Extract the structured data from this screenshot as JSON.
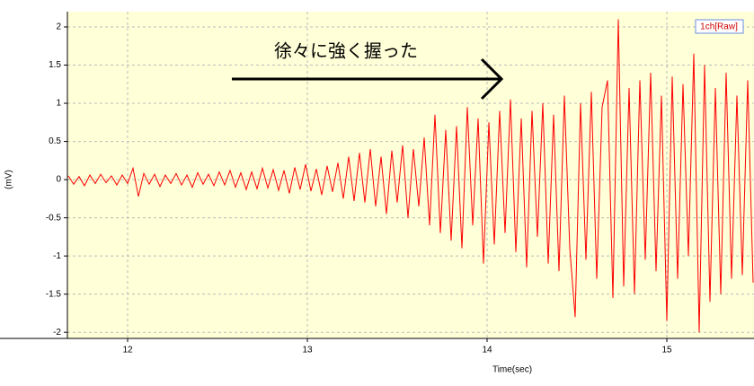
{
  "chart_data": {
    "type": "line",
    "annotation": "徐々に強く握った",
    "legend": "1ch[Raw]",
    "xlabel": "Time(sec)",
    "ylabel": "(mV)",
    "xlim": [
      11.665,
      15.485
    ],
    "ylim": [
      -2.08,
      2.2
    ],
    "xticks": [
      12,
      13,
      14,
      15
    ],
    "yticks": [
      2,
      1.5,
      1,
      0.5,
      0,
      -0.5,
      -1,
      -1.5,
      -2
    ],
    "grid": true,
    "series": [
      {
        "name": "1ch[Raw]",
        "color": "#ff0000",
        "x": [
          11.67,
          11.7,
          11.73,
          11.76,
          11.79,
          11.82,
          11.85,
          11.88,
          11.91,
          11.94,
          11.97,
          12.0,
          12.03,
          12.06,
          12.09,
          12.12,
          12.15,
          12.18,
          12.21,
          12.24,
          12.27,
          12.3,
          12.33,
          12.36,
          12.39,
          12.42,
          12.45,
          12.48,
          12.51,
          12.54,
          12.57,
          12.6,
          12.63,
          12.66,
          12.69,
          12.72,
          12.75,
          12.78,
          12.81,
          12.84,
          12.87,
          12.9,
          12.93,
          12.96,
          12.99,
          13.02,
          13.05,
          13.08,
          13.11,
          13.14,
          13.17,
          13.2,
          13.23,
          13.26,
          13.29,
          13.32,
          13.35,
          13.38,
          13.41,
          13.44,
          13.47,
          13.5,
          13.53,
          13.56,
          13.59,
          13.62,
          13.65,
          13.68,
          13.71,
          13.74,
          13.77,
          13.8,
          13.83,
          13.86,
          13.89,
          13.92,
          13.95,
          13.98,
          14.01,
          14.04,
          14.07,
          14.1,
          14.13,
          14.16,
          14.19,
          14.22,
          14.25,
          14.28,
          14.31,
          14.34,
          14.37,
          14.4,
          14.43,
          14.46,
          14.49,
          14.52,
          14.55,
          14.58,
          14.61,
          14.64,
          14.67,
          14.7,
          14.73,
          14.76,
          14.79,
          14.82,
          14.85,
          14.88,
          14.91,
          14.94,
          14.97,
          15.0,
          15.03,
          15.06,
          15.09,
          15.12,
          15.15,
          15.18,
          15.21,
          15.24,
          15.27,
          15.3,
          15.33,
          15.36,
          15.39,
          15.42,
          15.45,
          15.48
        ],
        "values": [
          0.05,
          -0.06,
          0.04,
          -0.08,
          0.06,
          -0.05,
          0.07,
          -0.04,
          0.05,
          -0.07,
          0.06,
          -0.05,
          0.15,
          -0.22,
          0.08,
          -0.06,
          0.07,
          -0.09,
          0.06,
          -0.05,
          0.08,
          -0.07,
          0.06,
          -0.1,
          0.09,
          -0.06,
          0.07,
          -0.08,
          0.1,
          -0.07,
          0.12,
          -0.1,
          0.09,
          -0.13,
          0.1,
          -0.12,
          0.15,
          -0.11,
          0.13,
          -0.14,
          0.12,
          -0.18,
          0.16,
          -0.13,
          0.2,
          -0.15,
          0.14,
          -0.2,
          0.18,
          -0.16,
          0.22,
          -0.25,
          0.3,
          -0.28,
          0.35,
          -0.3,
          0.4,
          -0.35,
          0.3,
          -0.45,
          0.38,
          -0.3,
          0.45,
          -0.5,
          0.4,
          -0.35,
          0.55,
          -0.6,
          0.85,
          -0.7,
          0.65,
          -0.8,
          0.7,
          -0.9,
          0.95,
          -0.6,
          0.8,
          -1.1,
          0.75,
          -0.85,
          0.9,
          -0.7,
          1.05,
          -0.95,
          0.8,
          -1.15,
          0.9,
          -0.75,
          1.0,
          -1.1,
          0.85,
          -1.2,
          1.1,
          -0.9,
          -1.8,
          1.0,
          -1.05,
          1.15,
          -1.3,
          0.95,
          1.3,
          -1.55,
          2.1,
          -1.4,
          1.2,
          -1.5,
          1.3,
          -1.05,
          1.4,
          -1.2,
          1.1,
          -1.85,
          1.35,
          -1.3,
          1.25,
          -1.0,
          1.65,
          -2.0,
          1.5,
          -1.6,
          1.2,
          -1.5,
          1.4,
          -1.3,
          1.1,
          -1.25,
          1.3,
          -1.35
        ]
      }
    ]
  }
}
